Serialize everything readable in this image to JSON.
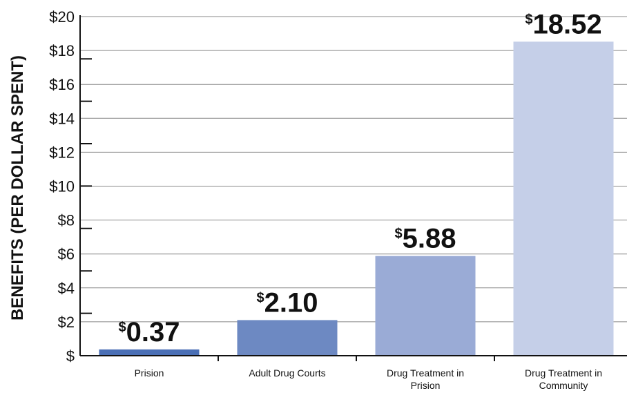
{
  "chart_data": {
    "type": "bar",
    "title": "",
    "xlabel": "",
    "ylabel": "BENEFITS (PER DOLLAR SPENT)",
    "ylim": [
      0,
      20
    ],
    "yticks": [
      0,
      2,
      4,
      6,
      8,
      10,
      12,
      14,
      16,
      18,
      20
    ],
    "ytick_labels": [
      "$",
      "$2",
      "$4",
      "$6",
      "$8",
      "$10",
      "$12",
      "$14",
      "$16",
      "$18",
      "$20"
    ],
    "grid": true,
    "categories": [
      [
        "Prision"
      ],
      [
        "Adult Drug Courts"
      ],
      [
        "Drug Treatment in",
        "Prision"
      ],
      [
        "Drug Treatment in",
        "Community"
      ]
    ],
    "values": [
      0.37,
      2.1,
      5.88,
      18.52
    ],
    "value_labels": [
      {
        "currency": "$",
        "amount": "0.37"
      },
      {
        "currency": "$",
        "amount": "2.10"
      },
      {
        "currency": "$",
        "amount": "5.88"
      },
      {
        "currency": "$",
        "amount": "18.52"
      }
    ],
    "colors": [
      "#4a6fb5",
      "#6d89c2",
      "#9aabd6",
      "#c5cfe8"
    ],
    "gridline_color": "#888888",
    "axis_color": "#111111"
  }
}
